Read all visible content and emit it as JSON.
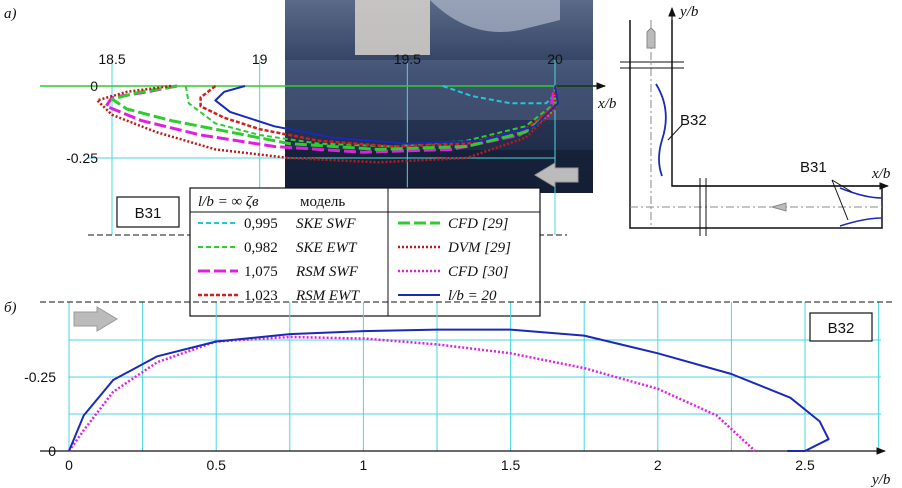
{
  "panel_a_label": "а)",
  "panel_b_label": "б)",
  "box_label_top": "B31",
  "box_label_bottom": "B32",
  "inset": {
    "y_axis_label": "y/b",
    "x_axis_label": "x/b",
    "label_b32": "B32",
    "label_b31": "B31"
  },
  "legend": {
    "header_left": "l/b = ∞  ζв",
    "header_model": "модель",
    "rows": [
      {
        "value": "0,995",
        "model": "SKE SWF",
        "color": "#26c6da",
        "dash": "5,3",
        "width": 2
      },
      {
        "value": "0,982",
        "model": "SKE EWT",
        "color": "#2ecc2e",
        "dash": "5,3",
        "width": 2
      },
      {
        "value": "1,075",
        "model": "RSM SWF",
        "color": "#e020e0",
        "dash": "12,4",
        "width": 3
      },
      {
        "value": "1,023",
        "model": "RSM EWT",
        "color": "#d02020",
        "dash": "4,2",
        "width": 2.5
      }
    ],
    "rows_right": [
      {
        "label": "CFD [29]",
        "color": "#2ecc2e",
        "dash": "12,4",
        "width": 3
      },
      {
        "label": "DVM [29]",
        "color": "#c01818",
        "dash": "2,2",
        "width": 2.5
      },
      {
        "label": "CFD [30]",
        "color": "#e020e0",
        "dash": "2,2",
        "width": 2.5
      },
      {
        "label": "l/b = 20",
        "color": "#1a2ab8",
        "dash": "",
        "width": 2
      }
    ]
  },
  "chart_data": [
    {
      "type": "line",
      "panel": "а)",
      "xlabel": "x/b",
      "xticks": [
        18.5,
        19,
        19.5,
        20
      ],
      "yticks": [
        0,
        -0.25
      ],
      "xlim": [
        18.35,
        20.05
      ],
      "ylim": [
        -0.42,
        0.05
      ],
      "grid": true,
      "series": [
        {
          "name": "0,995 SKE SWF",
          "color": "#26c6da",
          "points": [
            [
              19.62,
              0
            ],
            [
              19.72,
              -0.035
            ],
            [
              19.85,
              -0.06
            ],
            [
              19.97,
              -0.06
            ],
            [
              20.0,
              -0.03
            ],
            [
              20.0,
              0
            ]
          ]
        },
        {
          "name": "0,982 SKE EWT",
          "color": "#2ecc2e",
          "points": [
            [
              18.75,
              0
            ],
            [
              18.76,
              -0.06
            ],
            [
              18.85,
              -0.13
            ],
            [
              19.0,
              -0.17
            ],
            [
              19.2,
              -0.2
            ],
            [
              19.45,
              -0.21
            ],
            [
              19.7,
              -0.19
            ],
            [
              19.9,
              -0.14
            ],
            [
              20.0,
              -0.06
            ],
            [
              20.0,
              0
            ]
          ]
        },
        {
          "name": "1,075 RSM SWF",
          "color": "#e020e0",
          "points": [
            [
              18.72,
              0
            ],
            [
              18.62,
              -0.02
            ],
            [
              18.5,
              -0.04
            ],
            [
              18.48,
              -0.07
            ],
            [
              18.6,
              -0.12
            ],
            [
              18.8,
              -0.17
            ],
            [
              19.05,
              -0.21
            ],
            [
              19.35,
              -0.23
            ],
            [
              19.65,
              -0.22
            ],
            [
              19.88,
              -0.17
            ],
            [
              19.98,
              -0.1
            ],
            [
              20.0,
              0
            ]
          ]
        },
        {
          "name": "1,023 RSM EWT",
          "color": "#d02020",
          "points": [
            [
              18.85,
              0
            ],
            [
              18.8,
              -0.04
            ],
            [
              18.8,
              -0.07
            ],
            [
              18.88,
              -0.11
            ],
            [
              19.0,
              -0.15
            ],
            [
              19.2,
              -0.19
            ],
            [
              19.45,
              -0.21
            ],
            [
              19.7,
              -0.2
            ],
            [
              19.9,
              -0.15
            ],
            [
              20.0,
              -0.07
            ],
            [
              20.0,
              0
            ]
          ]
        },
        {
          "name": "CFD [29]",
          "color": "#2ecc2e",
          "points": [
            [
              18.72,
              0
            ],
            [
              18.6,
              -0.02
            ],
            [
              18.5,
              -0.045
            ],
            [
              18.55,
              -0.08
            ],
            [
              18.7,
              -0.12
            ],
            [
              18.9,
              -0.16
            ],
            [
              19.1,
              -0.2
            ],
            [
              19.4,
              -0.22
            ],
            [
              19.7,
              -0.21
            ],
            [
              19.9,
              -0.16
            ],
            [
              20.0,
              -0.08
            ],
            [
              20.0,
              0
            ]
          ]
        },
        {
          "name": "DVM [29]",
          "color": "#c01818",
          "points": [
            [
              18.7,
              0
            ],
            [
              18.55,
              -0.02
            ],
            [
              18.45,
              -0.05
            ],
            [
              18.5,
              -0.1
            ],
            [
              18.65,
              -0.16
            ],
            [
              18.85,
              -0.22
            ],
            [
              19.1,
              -0.25
            ],
            [
              19.4,
              -0.265
            ],
            [
              19.7,
              -0.25
            ],
            [
              19.9,
              -0.18
            ],
            [
              20.0,
              -0.08
            ],
            [
              20.0,
              0
            ]
          ]
        },
        {
          "name": "l/b = 20",
          "color": "#1a2ab8",
          "points": [
            [
              18.95,
              0
            ],
            [
              18.88,
              -0.02
            ],
            [
              18.85,
              -0.05
            ],
            [
              18.9,
              -0.09
            ],
            [
              19.05,
              -0.14
            ],
            [
              19.25,
              -0.18
            ],
            [
              19.5,
              -0.2
            ],
            [
              19.75,
              -0.19
            ],
            [
              19.93,
              -0.14
            ],
            [
              20.01,
              -0.06
            ],
            [
              20.0,
              0
            ]
          ]
        }
      ]
    },
    {
      "type": "line",
      "panel": "б)",
      "xlabel": "y/b",
      "xticks": [
        0,
        0.5,
        1,
        1.5,
        2,
        2.5
      ],
      "yticks": [
        0,
        -0.25
      ],
      "xlim": [
        0,
        2.75
      ],
      "ylim": [
        0,
        -0.5
      ],
      "grid": true,
      "series": [
        {
          "name": "CFD [30]",
          "color": "#e020e0",
          "points": [
            [
              0,
              0
            ],
            [
              0.05,
              -0.07
            ],
            [
              0.15,
              -0.2
            ],
            [
              0.3,
              -0.3
            ],
            [
              0.5,
              -0.37
            ],
            [
              0.75,
              -0.385
            ],
            [
              1.0,
              -0.38
            ],
            [
              1.25,
              -0.36
            ],
            [
              1.5,
              -0.33
            ],
            [
              1.75,
              -0.28
            ],
            [
              2.0,
              -0.21
            ],
            [
              2.2,
              -0.12
            ],
            [
              2.33,
              0
            ]
          ]
        },
        {
          "name": "l/b = 20",
          "color": "#1a2ab8",
          "points": [
            [
              0,
              0
            ],
            [
              0.05,
              -0.12
            ],
            [
              0.15,
              -0.24
            ],
            [
              0.3,
              -0.32
            ],
            [
              0.5,
              -0.37
            ],
            [
              0.75,
              -0.395
            ],
            [
              1.0,
              -0.405
            ],
            [
              1.25,
              -0.41
            ],
            [
              1.5,
              -0.41
            ],
            [
              1.75,
              -0.39
            ],
            [
              2.0,
              -0.33
            ],
            [
              2.25,
              -0.26
            ],
            [
              2.45,
              -0.18
            ],
            [
              2.55,
              -0.1
            ],
            [
              2.58,
              -0.04
            ],
            [
              2.5,
              0
            ],
            [
              2.44,
              0
            ]
          ]
        }
      ]
    }
  ]
}
